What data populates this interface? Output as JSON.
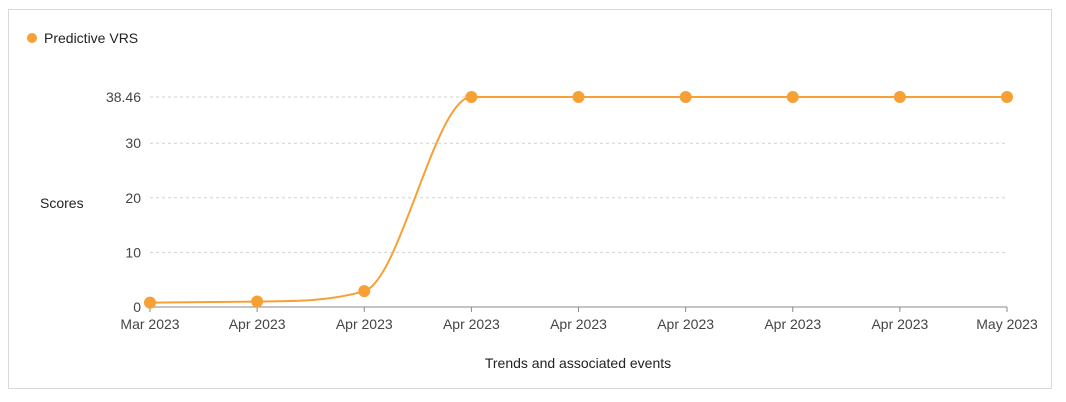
{
  "chart_data": {
    "type": "line",
    "legend": {
      "position": "top-left",
      "label": "Predictive VRS"
    },
    "series": [
      {
        "name": "Predictive VRS",
        "color": "#F7A035",
        "values": [
          0.8,
          1.0,
          2.9,
          38.46,
          38.46,
          38.46,
          38.46,
          38.46,
          38.46
        ]
      }
    ],
    "categories": [
      "Mar 2023",
      "Apr 2023",
      "Apr 2023",
      "Apr 2023",
      "Apr 2023",
      "Apr 2023",
      "Apr 2023",
      "Apr 2023",
      "May 2023"
    ],
    "yticks": [
      "0",
      "10",
      "20",
      "30",
      "38.46"
    ],
    "ytick_values": [
      0,
      10,
      20,
      30,
      38.46
    ],
    "ylim": [
      0,
      38.46
    ],
    "xlabel": "Trends and associated events",
    "ylabel": "Scores",
    "grid": true,
    "grid_style": "dashed"
  }
}
